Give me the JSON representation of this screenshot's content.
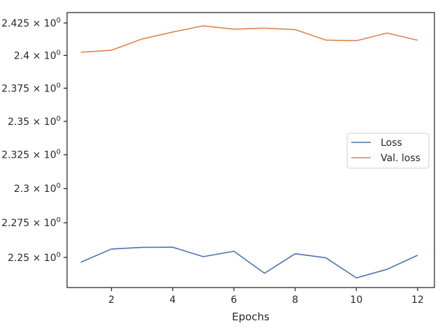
{
  "chart_data": {
    "type": "line",
    "title": "",
    "xlabel": "Epochs",
    "ylabel": "",
    "x": [
      1,
      2,
      3,
      4,
      5,
      6,
      7,
      8,
      9,
      10,
      11,
      12
    ],
    "xlim": [
      0.55,
      12.55
    ],
    "ylim": [
      2.2284,
      2.4331
    ],
    "yscale": "log",
    "grid": false,
    "legend_position": "center-right",
    "x_ticks": [
      2,
      4,
      6,
      8,
      10,
      12
    ],
    "x_tick_labels": [
      "2",
      "4",
      "6",
      "8",
      "10",
      "12"
    ],
    "y_ticks": [
      2.25,
      2.275,
      2.3,
      2.325,
      2.35,
      2.375,
      2.4,
      2.425
    ],
    "y_tick_labels": [
      "2.25",
      "2.275",
      "2.3",
      "2.325",
      "2.35",
      "2.375",
      "2.4",
      "2.425"
    ],
    "y_tick_suffix": "× 10",
    "y_tick_exponent": "0",
    "series": [
      {
        "name": "Loss",
        "color": "#4c72b0",
        "values": [
          2.2465,
          2.256,
          2.2572,
          2.2573,
          2.2505,
          2.2544,
          2.2386,
          2.2526,
          2.2497,
          2.2353,
          2.2414,
          2.2515
        ]
      },
      {
        "name": "Val. loss",
        "color": "#dd8452",
        "values": [
          2.4024,
          2.404,
          2.4126,
          2.418,
          2.4228,
          2.4202,
          2.421,
          2.4199,
          2.4118,
          2.4113,
          2.4172,
          2.4117
        ]
      }
    ]
  }
}
